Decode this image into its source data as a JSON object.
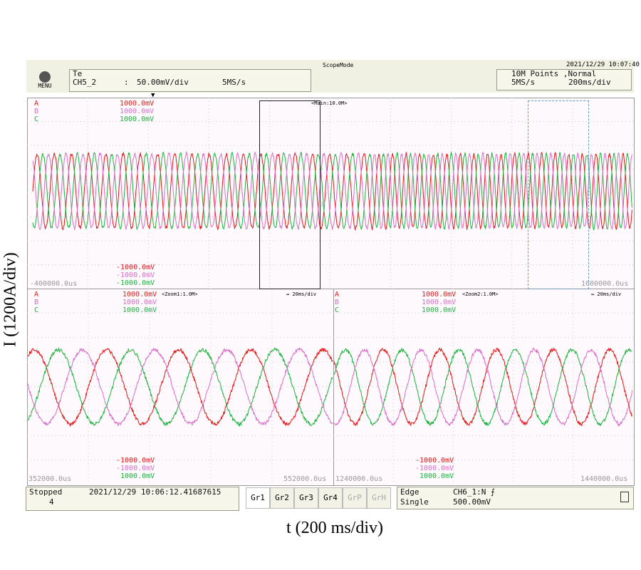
{
  "header": {
    "mode": "ScopeMode",
    "datetime": "2021/12/29 10:07:40",
    "menu_label": "MENU",
    "channel_name": "Te",
    "channel_id": "CH5_2",
    "channel_sep": ":",
    "vdiv": "50.00mV/div",
    "rate": "5MS/s",
    "points": "10M Points  ,Normal",
    "right_rate": "5MS/s",
    "tdiv": "200ms/div"
  },
  "main": {
    "label": "<Main:10.0M>",
    "traces": [
      {
        "name": "A",
        "top": "1000.0mV",
        "bottom": "-1000.0mV"
      },
      {
        "name": "B",
        "top": "1000.0mV",
        "bottom": "-1000.0mV"
      },
      {
        "name": "C",
        "top": "1000.0mV",
        "bottom": "-1000.0mV"
      }
    ],
    "t_start": "-400000.0us",
    "t_end": "1600000.0us",
    "marker_b": "B"
  },
  "zoom1": {
    "label": "<Zoom1:1.0M>",
    "tdiv": "↔ 20ms/div",
    "traces": [
      {
        "name": "A",
        "top": "1000.0mV",
        "bottom": "-1000.0mV"
      },
      {
        "name": "B",
        "top": "1000.0mV",
        "bottom": "-1000.0mV"
      },
      {
        "name": "C",
        "top": "1000.0mV",
        "bottom": "1000.0mV"
      }
    ],
    "t_start": "352000.0us",
    "t_end": "552000.0us"
  },
  "zoom2": {
    "label": "<Zoom2:1.0M>",
    "tdiv": "↔ 20ms/div",
    "traces": [
      {
        "name": "A",
        "top": "1000.0mV",
        "bottom": "-1000.0mV"
      },
      {
        "name": "B",
        "top": "1000.0mV",
        "bottom": "-1000.0mV"
      },
      {
        "name": "C",
        "top": "1000.0mV",
        "bottom": "1000.0mV"
      }
    ],
    "t_start": "1240000.0us",
    "t_end": "1440000.0us"
  },
  "footer": {
    "status": "Stopped",
    "count": "4",
    "timestamp": "2021/12/29 10:06:12.41687615",
    "groups": [
      "Gr1",
      "Gr2",
      "Gr3",
      "Gr4",
      "GrP",
      "GrH"
    ],
    "trigger_type": "Edge",
    "trigger_source": "CH6_1:N",
    "trigger_mode": "Single",
    "trigger_level": "500.00mV"
  },
  "axes": {
    "ylabel": "I (1200A/div)",
    "xlabel": "t (200 ms/div)"
  },
  "colors": {
    "A": "#e01818",
    "B": "#d870c8",
    "C": "#20b040"
  }
}
